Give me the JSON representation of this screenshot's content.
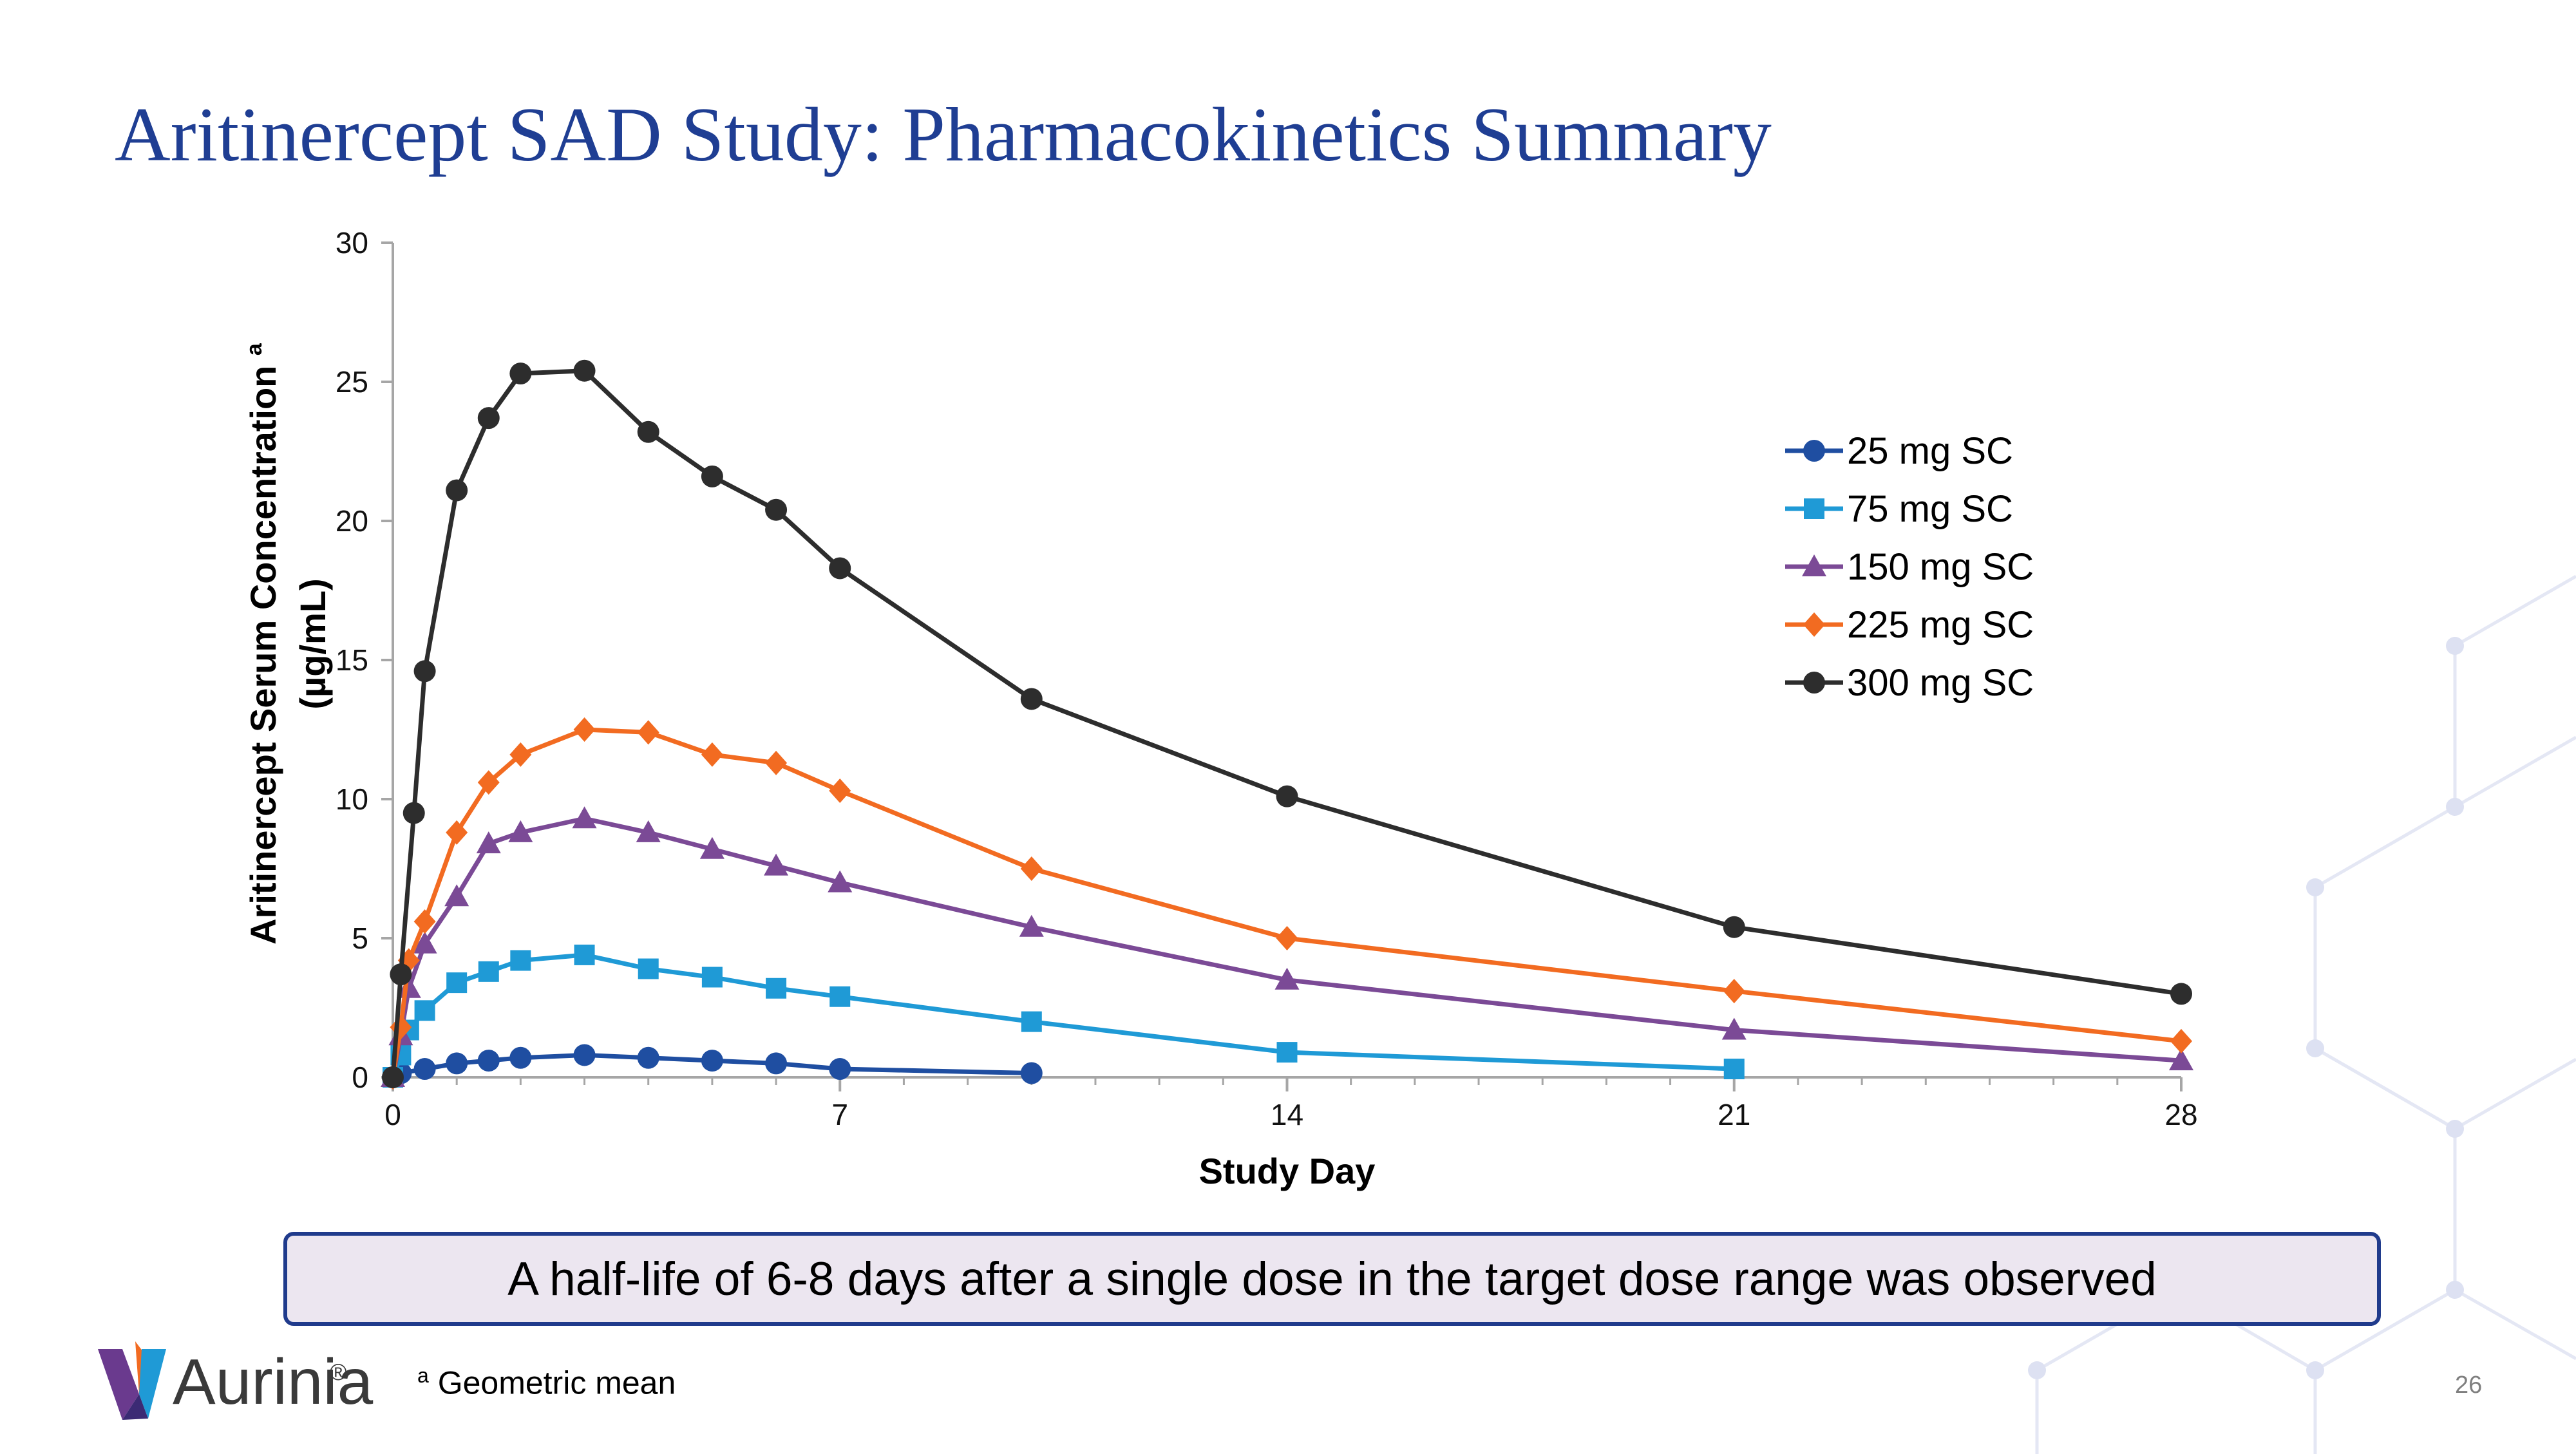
{
  "slide": {
    "title": "Aritinercept SAD Study: Pharmacokinetics Summary",
    "callout": "A half-life of 6-8 days after a single dose in the target dose range was observed",
    "footnote_marker": "a",
    "footnote_text": "Geometric mean",
    "logo_text": "Aurinia",
    "logo_reg": "®",
    "page_number": "26"
  },
  "chart_data": {
    "type": "line",
    "title": "",
    "xlabel": "Study Day",
    "ylabel": "Aritinercept Serum Concentration",
    "ylabel_sup": "a",
    "ylabel_unit": "(µg/mL)",
    "xlim": [
      0,
      28
    ],
    "ylim": [
      0,
      30
    ],
    "xticks": [
      0,
      7,
      14,
      21,
      28
    ],
    "yticks": [
      0,
      5,
      10,
      15,
      20,
      25,
      30
    ],
    "legend_position": "top-right",
    "series": [
      {
        "name": "25 mg SC",
        "color": "#1f4ea1",
        "marker": "circle",
        "x": [
          0,
          0.125,
          0.5,
          1,
          1.5,
          2,
          3,
          4,
          5,
          6,
          7,
          10
        ],
        "y": [
          0,
          0.15,
          0.3,
          0.5,
          0.6,
          0.7,
          0.8,
          0.7,
          0.6,
          0.5,
          0.3,
          0.15
        ]
      },
      {
        "name": "75 mg SC",
        "color": "#1f9ad6",
        "marker": "square",
        "x": [
          0,
          0.125,
          0.25,
          0.5,
          1,
          1.5,
          2,
          3,
          4,
          5,
          6,
          7,
          10,
          14,
          21
        ],
        "y": [
          0,
          0.8,
          1.7,
          2.4,
          3.4,
          3.8,
          4.2,
          4.4,
          3.9,
          3.6,
          3.2,
          2.9,
          2.0,
          0.9,
          0.3
        ]
      },
      {
        "name": "150 mg SC",
        "color": "#7b4a96",
        "marker": "triangle",
        "x": [
          0,
          0.125,
          0.25,
          0.5,
          1,
          1.5,
          2,
          3,
          4,
          5,
          6,
          7,
          10,
          14,
          21,
          28
        ],
        "y": [
          0,
          1.5,
          3.2,
          4.8,
          6.5,
          8.4,
          8.8,
          9.3,
          8.8,
          8.2,
          7.6,
          7.0,
          5.4,
          3.5,
          1.7,
          0.6
        ]
      },
      {
        "name": "225 mg SC",
        "color": "#f26b21",
        "marker": "diamond",
        "x": [
          0,
          0.125,
          0.25,
          0.5,
          1,
          1.5,
          2,
          3,
          4,
          5,
          6,
          7,
          10,
          14,
          21,
          28
        ],
        "y": [
          0,
          1.8,
          4.2,
          5.6,
          8.8,
          10.6,
          11.6,
          12.5,
          12.4,
          11.6,
          11.3,
          10.3,
          7.5,
          5.0,
          3.1,
          1.3
        ]
      },
      {
        "name": "300 mg SC",
        "color": "#2d2d2d",
        "marker": "circle",
        "x": [
          0,
          0.125,
          0.33,
          0.5,
          1,
          1.5,
          2,
          3,
          4,
          5,
          6,
          7,
          10,
          14,
          21,
          28
        ],
        "y": [
          0,
          3.7,
          9.5,
          14.6,
          21.1,
          23.7,
          25.3,
          25.4,
          23.2,
          21.6,
          20.4,
          18.3,
          13.6,
          10.1,
          5.4,
          3.0
        ]
      }
    ]
  }
}
